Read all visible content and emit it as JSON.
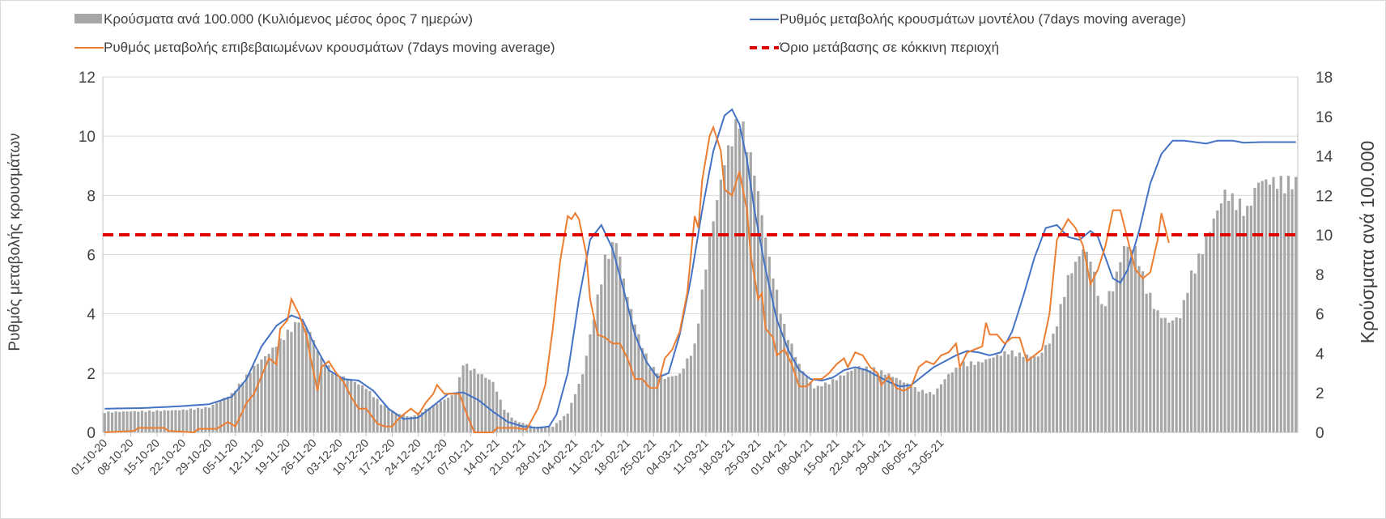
{
  "chart_data": {
    "type": "bar+line",
    "title": "",
    "y_left_label": "Ρυθμός μεταβολής κρουσμάτων",
    "y_right_label": "Κρούσματα ανά 100.000",
    "y_left_lim": [
      0,
      12
    ],
    "y_left_ticks": [
      "0",
      "2",
      "4",
      "6",
      "8",
      "10",
      "12"
    ],
    "y_right_lim": [
      0,
      18
    ],
    "y_right_ticks": [
      "0",
      "2",
      "4",
      "6",
      "8",
      "10",
      "12",
      "14",
      "16",
      "18"
    ],
    "x_tick_labels": [
      "01-10-20",
      "08-10-20",
      "15-10-20",
      "22-10-20",
      "29-10-20",
      "05-11-20",
      "12-11-20",
      "19-11-20",
      "26-11-20",
      "03-12-20",
      "10-12-20",
      "17-12-20",
      "24-12-20",
      "31-12-20",
      "07-01-21",
      "14-01-21",
      "21-01-21",
      "28-01-21",
      "04-02-21",
      "11-02-21",
      "18-02-21",
      "25-02-21",
      "04-03-21",
      "11-03-21",
      "18-03-21",
      "25-03-21",
      "01-04-21",
      "08-04-21",
      "15-04-21",
      "22-04-21",
      "29-04-21",
      "06-05-21",
      "13-05-21"
    ],
    "legend": {
      "bars": "Κρούσματα ανά 100.000 (Κυλιόμενος μέσος όρος 7 ημερών)",
      "model": "Ρυθμός μεταβολής κρουσμάτων μοντέλου (7days moving average)",
      "confirmed": "Ρυθμός μεταβολής επιβεβαιωμένων κρουσμάτων (7days moving average)",
      "threshold": "Όριο μετάβασης σε κόκκινη περιοχή"
    },
    "colors": {
      "bars": "#a6a6a6",
      "model": "#4472c4",
      "confirmed": "#ed7d31",
      "threshold": "#e00000",
      "grid": "#d9d9d9",
      "axis": "#bfbfbf",
      "text": "#404040"
    },
    "threshold_value": 6.67,
    "bars_anchors": [
      [
        0,
        1.05
      ],
      [
        10,
        1.1
      ],
      [
        20,
        1.15
      ],
      [
        28,
        1.3
      ],
      [
        34,
        2.0
      ],
      [
        40,
        3.4
      ],
      [
        44,
        4.1
      ],
      [
        48,
        5.0
      ],
      [
        52,
        5.8
      ],
      [
        55,
        5.2
      ],
      [
        58,
        3.8
      ],
      [
        62,
        3.0
      ],
      [
        66,
        2.7
      ],
      [
        70,
        2.3
      ],
      [
        74,
        1.5
      ],
      [
        78,
        1.0
      ],
      [
        82,
        0.8
      ],
      [
        86,
        1.2
      ],
      [
        90,
        1.6
      ],
      [
        94,
        2.0
      ],
      [
        96,
        3.6
      ],
      [
        100,
        3.1
      ],
      [
        104,
        2.6
      ],
      [
        107,
        1.2
      ],
      [
        110,
        0.6
      ],
      [
        115,
        0.3
      ],
      [
        120,
        0.3
      ],
      [
        124,
        1.0
      ],
      [
        128,
        3.0
      ],
      [
        131,
        6.0
      ],
      [
        134,
        9.0
      ],
      [
        137,
        10.0
      ],
      [
        140,
        7.0
      ],
      [
        143,
        5.0
      ],
      [
        146,
        3.5
      ],
      [
        150,
        2.8
      ],
      [
        154,
        3.0
      ],
      [
        158,
        4.5
      ],
      [
        162,
        10.0
      ],
      [
        166,
        14.0
      ],
      [
        170,
        16.5
      ],
      [
        174,
        13.5
      ],
      [
        178,
        9.0
      ],
      [
        182,
        5.5
      ],
      [
        186,
        3.5
      ],
      [
        190,
        2.3
      ],
      [
        194,
        2.6
      ],
      [
        198,
        3.0
      ],
      [
        202,
        3.4
      ],
      [
        206,
        3.3
      ],
      [
        210,
        3.0
      ],
      [
        214,
        2.6
      ],
      [
        218,
        2.2
      ],
      [
        222,
        2.0
      ],
      [
        226,
        3.0
      ],
      [
        230,
        3.6
      ],
      [
        234,
        3.6
      ],
      [
        238,
        3.9
      ],
      [
        242,
        4.2
      ],
      [
        246,
        4.0
      ],
      [
        250,
        3.9
      ],
      [
        254,
        5.0
      ],
      [
        258,
        8.0
      ],
      [
        262,
        9.5
      ],
      [
        264,
        9.0
      ],
      [
        267,
        6.5
      ],
      [
        270,
        7.5
      ],
      [
        273,
        9.6
      ],
      [
        276,
        9.5
      ],
      [
        279,
        7.5
      ],
      [
        282,
        6.2
      ],
      [
        285,
        5.7
      ],
      [
        288,
        6.0
      ],
      [
        291,
        8.2
      ],
      [
        294,
        9.5
      ],
      [
        297,
        11.0
      ],
      [
        300,
        12.4
      ],
      [
        303,
        12.0
      ],
      [
        306,
        11.5
      ],
      [
        309,
        13.0
      ],
      [
        315,
        13.0
      ],
      [
        319,
        13.0
      ]
    ],
    "model_anchors": [
      [
        0,
        0.8
      ],
      [
        10,
        0.82
      ],
      [
        20,
        0.88
      ],
      [
        28,
        0.95
      ],
      [
        34,
        1.2
      ],
      [
        38,
        1.8
      ],
      [
        42,
        2.9
      ],
      [
        46,
        3.6
      ],
      [
        50,
        3.95
      ],
      [
        53,
        3.8
      ],
      [
        56,
        3.0
      ],
      [
        60,
        2.1
      ],
      [
        64,
        1.8
      ],
      [
        68,
        1.75
      ],
      [
        72,
        1.4
      ],
      [
        76,
        0.8
      ],
      [
        80,
        0.45
      ],
      [
        84,
        0.5
      ],
      [
        88,
        0.9
      ],
      [
        92,
        1.3
      ],
      [
        96,
        1.35
      ],
      [
        100,
        1.1
      ],
      [
        104,
        0.7
      ],
      [
        108,
        0.35
      ],
      [
        112,
        0.2
      ],
      [
        116,
        0.15
      ],
      [
        119,
        0.2
      ],
      [
        121,
        0.6
      ],
      [
        124,
        2.0
      ],
      [
        127,
        4.5
      ],
      [
        130,
        6.5
      ],
      [
        133,
        7.0
      ],
      [
        136,
        6.2
      ],
      [
        139,
        4.8
      ],
      [
        142,
        3.3
      ],
      [
        145,
        2.4
      ],
      [
        148,
        1.85
      ],
      [
        151,
        2.0
      ],
      [
        154,
        3.3
      ],
      [
        157,
        5.2
      ],
      [
        160,
        7.5
      ],
      [
        163,
        9.5
      ],
      [
        166,
        10.7
      ],
      [
        168,
        10.9
      ],
      [
        170,
        10.4
      ],
      [
        172,
        9.2
      ],
      [
        174,
        7.5
      ],
      [
        177,
        5.5
      ],
      [
        180,
        3.8
      ],
      [
        183,
        2.8
      ],
      [
        186,
        2.1
      ],
      [
        189,
        1.8
      ],
      [
        192,
        1.75
      ],
      [
        195,
        1.85
      ],
      [
        198,
        2.1
      ],
      [
        201,
        2.2
      ],
      [
        204,
        2.1
      ],
      [
        207,
        1.9
      ],
      [
        210,
        1.7
      ],
      [
        213,
        1.55
      ],
      [
        216,
        1.6
      ],
      [
        219,
        1.9
      ],
      [
        222,
        2.2
      ],
      [
        225,
        2.4
      ],
      [
        228,
        2.6
      ],
      [
        231,
        2.75
      ],
      [
        234,
        2.7
      ],
      [
        237,
        2.6
      ],
      [
        240,
        2.7
      ],
      [
        243,
        3.4
      ],
      [
        246,
        4.6
      ],
      [
        249,
        5.9
      ],
      [
        252,
        6.9
      ],
      [
        255,
        7.0
      ],
      [
        258,
        6.6
      ],
      [
        261,
        6.5
      ],
      [
        264,
        6.8
      ],
      [
        266,
        6.6
      ],
      [
        268,
        5.9
      ],
      [
        270,
        5.2
      ],
      [
        272,
        5.05
      ],
      [
        274,
        5.5
      ],
      [
        277,
        6.8
      ],
      [
        280,
        8.4
      ],
      [
        283,
        9.4
      ],
      [
        286,
        9.85
      ],
      [
        289,
        9.85
      ],
      [
        292,
        9.8
      ],
      [
        295,
        9.75
      ],
      [
        298,
        9.85
      ],
      [
        302,
        9.85
      ],
      [
        305,
        9.78
      ],
      [
        310,
        9.8
      ],
      [
        315,
        9.8
      ],
      [
        319,
        9.8
      ]
    ],
    "confirmed_anchors": [
      [
        0,
        0.0
      ],
      [
        8,
        0.05
      ],
      [
        9,
        0.15
      ],
      [
        16,
        0.15
      ],
      [
        17,
        0.05
      ],
      [
        24,
        0.0
      ],
      [
        25,
        0.12
      ],
      [
        30,
        0.12
      ],
      [
        33,
        0.35
      ],
      [
        35,
        0.2
      ],
      [
        38,
        1.0
      ],
      [
        40,
        1.3
      ],
      [
        42,
        1.9
      ],
      [
        44,
        2.5
      ],
      [
        46,
        2.3
      ],
      [
        47,
        3.5
      ],
      [
        49,
        3.8
      ],
      [
        50,
        4.5
      ],
      [
        52,
        4.0
      ],
      [
        54,
        3.3
      ],
      [
        55,
        2.6
      ],
      [
        57,
        1.4
      ],
      [
        58,
        2.2
      ],
      [
        60,
        2.4
      ],
      [
        62,
        2.0
      ],
      [
        64,
        1.7
      ],
      [
        66,
        1.2
      ],
      [
        68,
        0.8
      ],
      [
        70,
        0.8
      ],
      [
        73,
        0.3
      ],
      [
        75,
        0.2
      ],
      [
        77,
        0.2
      ],
      [
        79,
        0.5
      ],
      [
        80,
        0.6
      ],
      [
        82,
        0.8
      ],
      [
        84,
        0.6
      ],
      [
        86,
        1.0
      ],
      [
        88,
        1.3
      ],
      [
        89,
        1.6
      ],
      [
        91,
        1.3
      ],
      [
        95,
        1.3
      ],
      [
        97,
        0.6
      ],
      [
        99,
        0.0
      ],
      [
        104,
        0.0
      ],
      [
        105,
        0.15
      ],
      [
        110,
        0.15
      ],
      [
        113,
        0.1
      ],
      [
        116,
        0.8
      ],
      [
        118,
        1.6
      ],
      [
        120,
        3.5
      ],
      [
        122,
        5.8
      ],
      [
        124,
        7.3
      ],
      [
        125,
        7.2
      ],
      [
        126,
        7.4
      ],
      [
        127,
        7.2
      ],
      [
        129,
        6.0
      ],
      [
        130,
        4.5
      ],
      [
        132,
        3.3
      ],
      [
        134,
        3.2
      ],
      [
        136,
        3.0
      ],
      [
        138,
        3.0
      ],
      [
        140,
        2.5
      ],
      [
        142,
        1.8
      ],
      [
        144,
        1.8
      ],
      [
        146,
        1.5
      ],
      [
        148,
        1.5
      ],
      [
        150,
        2.5
      ],
      [
        152,
        2.8
      ],
      [
        154,
        3.4
      ],
      [
        156,
        4.7
      ],
      [
        158,
        7.3
      ],
      [
        159,
        6.9
      ],
      [
        160,
        8.5
      ],
      [
        162,
        10.0
      ],
      [
        163,
        10.3
      ],
      [
        165,
        9.5
      ],
      [
        166,
        8.2
      ],
      [
        168,
        8.0
      ],
      [
        170,
        8.8
      ],
      [
        172,
        7.5
      ],
      [
        173,
        6.0
      ],
      [
        175,
        4.5
      ],
      [
        176,
        4.7
      ],
      [
        177,
        3.5
      ],
      [
        179,
        3.2
      ],
      [
        180,
        2.6
      ],
      [
        182,
        2.8
      ],
      [
        184,
        2.3
      ],
      [
        186,
        1.55
      ],
      [
        188,
        1.55
      ],
      [
        190,
        1.8
      ],
      [
        192,
        1.8
      ],
      [
        194,
        2.0
      ],
      [
        196,
        2.3
      ],
      [
        198,
        2.5
      ],
      [
        199,
        2.2
      ],
      [
        201,
        2.7
      ],
      [
        203,
        2.6
      ],
      [
        205,
        2.2
      ],
      [
        207,
        2.0
      ],
      [
        208,
        1.6
      ],
      [
        210,
        1.9
      ],
      [
        212,
        1.5
      ],
      [
        214,
        1.4
      ],
      [
        216,
        1.55
      ],
      [
        218,
        2.2
      ],
      [
        220,
        2.4
      ],
      [
        222,
        2.3
      ],
      [
        224,
        2.6
      ],
      [
        226,
        2.7
      ],
      [
        228,
        3.0
      ],
      [
        229,
        2.2
      ],
      [
        231,
        2.7
      ],
      [
        233,
        2.8
      ],
      [
        235,
        2.9
      ],
      [
        236,
        3.7
      ],
      [
        237,
        3.3
      ],
      [
        239,
        3.3
      ],
      [
        241,
        3.0
      ],
      [
        243,
        3.2
      ],
      [
        245,
        3.2
      ],
      [
        247,
        2.4
      ],
      [
        249,
        2.6
      ],
      [
        251,
        2.8
      ],
      [
        253,
        4.0
      ],
      [
        255,
        6.5
      ],
      [
        258,
        7.2
      ],
      [
        260,
        6.9
      ],
      [
        262,
        6.3
      ],
      [
        264,
        5.0
      ],
      [
        266,
        5.5
      ],
      [
        268,
        6.3
      ],
      [
        270,
        7.5
      ],
      [
        272,
        7.5
      ],
      [
        274,
        6.5
      ],
      [
        276,
        5.5
      ],
      [
        278,
        5.2
      ],
      [
        280,
        5.4
      ],
      [
        282,
        6.5
      ],
      [
        283,
        7.4
      ],
      [
        285,
        6.4
      ]
    ],
    "num_days": 320
  }
}
